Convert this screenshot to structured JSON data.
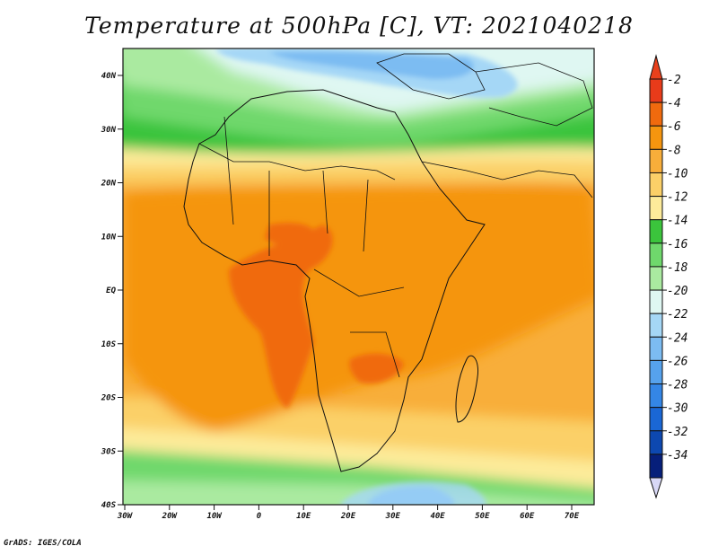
{
  "title": "Temperature at 500hPa [C], VT: 2021040218",
  "footer": "GrADS: IGES/COLA",
  "map": {
    "lat_ticks": [
      "40N",
      "30N",
      "20N",
      "10N",
      "EQ",
      "10S",
      "20S",
      "30S",
      "40S"
    ],
    "lon_ticks": [
      "30W",
      "20W",
      "10W",
      "0",
      "10E",
      "20E",
      "30E",
      "40E",
      "50E",
      "60E",
      "70E"
    ]
  },
  "colorbar": {
    "labels": [
      "-2",
      "-4",
      "-6",
      "-8",
      "-10",
      "-12",
      "-14",
      "-16",
      "-18",
      "-20",
      "-22",
      "-24",
      "-26",
      "-28",
      "-30",
      "-32",
      "-34"
    ],
    "colors": [
      "#e83b1a",
      "#f06a0e",
      "#f5950f",
      "#f8ae3a",
      "#fbd068",
      "#fdeb9a",
      "#3bc43c",
      "#6fd86c",
      "#aaeaa0",
      "#dff7f2",
      "#a5d7f6",
      "#7cbcf2",
      "#56a2ed",
      "#3486e6",
      "#1a67d5",
      "#0d48b0",
      "#061f7a"
    ],
    "under_color": "#d8d8f6",
    "over_color": "#e8401c"
  }
}
